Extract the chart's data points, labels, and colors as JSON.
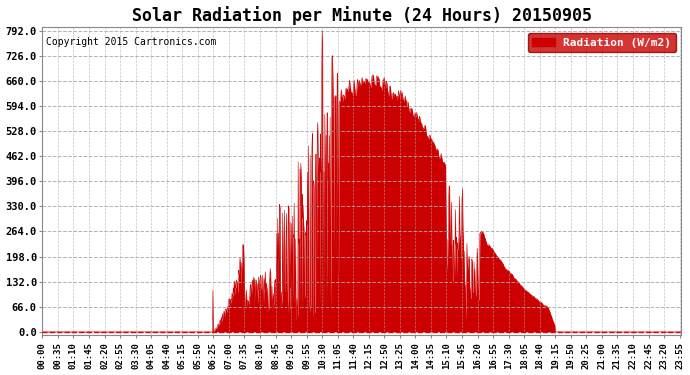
{
  "title": "Solar Radiation per Minute (24 Hours) 20150905",
  "copyright_text": "Copyright 2015 Cartronics.com",
  "ylabel": "Radiation (W/m2)",
  "yticks": [
    0.0,
    66.0,
    132.0,
    198.0,
    264.0,
    330.0,
    396.0,
    462.0,
    528.0,
    594.0,
    660.0,
    726.0,
    792.0
  ],
  "ymax": 792.0,
  "fill_color": "#cc0000",
  "background_color": "#ffffff",
  "grid_color": "#aaaaaa",
  "dashed_line_color": "#dd0000",
  "title_fontsize": 12,
  "legend_bg": "#cc0000",
  "legend_text_color": "#ffffff",
  "tick_interval_min": 35,
  "figwidth": 6.9,
  "figheight": 3.75,
  "dpi": 100
}
